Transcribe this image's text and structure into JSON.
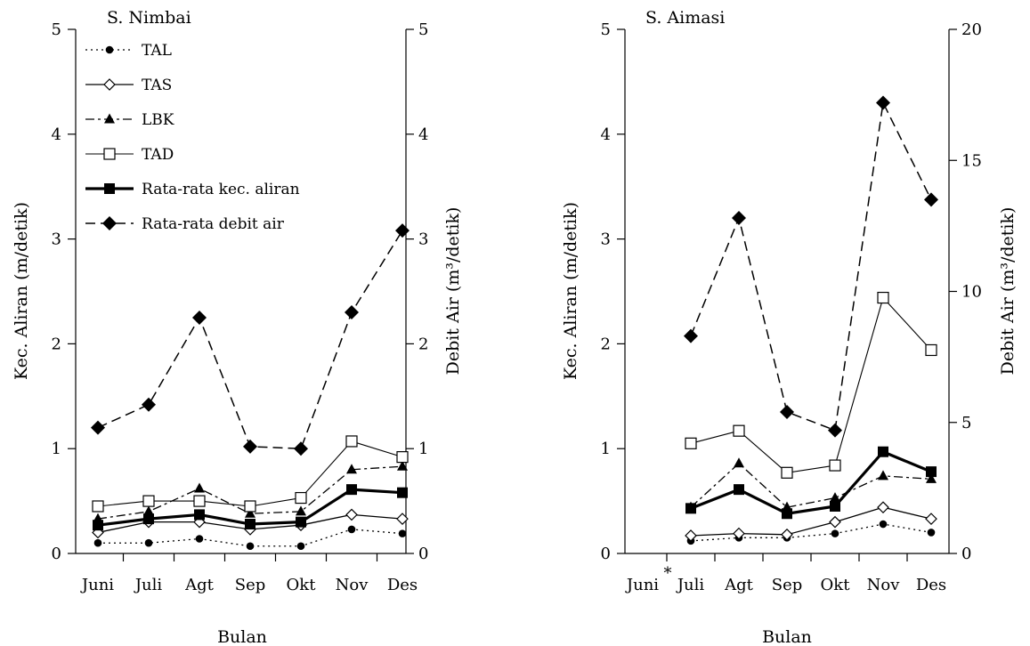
{
  "chart_data": [
    {
      "type": "line",
      "title": "S. Nimbai",
      "xlabel": "Bulan",
      "ylabel": "Kec. Aliran (m/detik)",
      "ylabel_right": "Debit Air (m³/detik)",
      "categories": [
        "Juni",
        "Juli",
        "Agt",
        "Sep",
        "Okt",
        "Nov",
        "Des"
      ],
      "ylim": [
        0,
        5
      ],
      "ylim_right": [
        0,
        5
      ],
      "yticks": [
        "0",
        "1",
        "2",
        "3",
        "4",
        "5"
      ],
      "yticks_right": [
        "0",
        "1",
        "2",
        "3",
        "4",
        "5"
      ],
      "legend_position": "top-left",
      "series": [
        {
          "name": "TAL",
          "axis": "left",
          "values": [
            0.1,
            0.1,
            0.14,
            0.07,
            0.07,
            0.23,
            0.19
          ]
        },
        {
          "name": "TAS",
          "axis": "left",
          "values": [
            0.2,
            0.3,
            0.3,
            0.23,
            0.27,
            0.37,
            0.33
          ]
        },
        {
          "name": "LBK",
          "axis": "left",
          "values": [
            0.33,
            0.4,
            0.62,
            0.38,
            0.4,
            0.8,
            0.83
          ]
        },
        {
          "name": "TAD",
          "axis": "left",
          "values": [
            0.45,
            0.5,
            0.5,
            0.45,
            0.53,
            1.07,
            0.92
          ]
        },
        {
          "name": "Rata-rata kec. aliran",
          "axis": "left",
          "values": [
            0.27,
            0.33,
            0.37,
            0.28,
            0.3,
            0.61,
            0.58
          ]
        },
        {
          "name": "Rata-rata debit air",
          "axis": "right",
          "values": [
            1.2,
            1.42,
            2.25,
            1.02,
            1.0,
            2.3,
            3.08
          ]
        }
      ]
    },
    {
      "type": "line",
      "title": "S. Aimasi",
      "xlabel": "Bulan",
      "ylabel": "Kec. Aliran (m/detik)",
      "ylabel_right": "Debit Air (m³/detik)",
      "categories": [
        "Juni",
        "Juli",
        "Agt",
        "Sep",
        "Okt",
        "Nov",
        "Des"
      ],
      "category_marker": {
        "category": "Juni",
        "mark": "*"
      },
      "ylim": [
        0,
        5
      ],
      "ylim_right": [
        0,
        20
      ],
      "yticks": [
        "0",
        "1",
        "2",
        "3",
        "4",
        "5"
      ],
      "yticks_right": [
        "0",
        "5",
        "10",
        "15",
        "20"
      ],
      "series": [
        {
          "name": "TAL",
          "axis": "left",
          "values": [
            null,
            0.12,
            0.15,
            0.15,
            0.19,
            0.28,
            0.2
          ]
        },
        {
          "name": "TAS",
          "axis": "left",
          "values": [
            null,
            0.17,
            0.19,
            0.18,
            0.3,
            0.44,
            0.33
          ]
        },
        {
          "name": "LBK",
          "axis": "left",
          "values": [
            null,
            0.44,
            0.86,
            0.44,
            0.53,
            0.74,
            0.71
          ]
        },
        {
          "name": "TAD",
          "axis": "left",
          "values": [
            null,
            1.05,
            1.17,
            0.77,
            0.84,
            2.44,
            1.94
          ]
        },
        {
          "name": "Rata-rata kec. aliran",
          "axis": "left",
          "values": [
            null,
            0.43,
            0.61,
            0.38,
            0.45,
            0.97,
            0.78
          ]
        },
        {
          "name": "Rata-rata debit air",
          "axis": "right",
          "values": [
            null,
            8.3,
            12.8,
            5.4,
            4.7,
            17.2,
            13.5
          ]
        }
      ]
    }
  ]
}
